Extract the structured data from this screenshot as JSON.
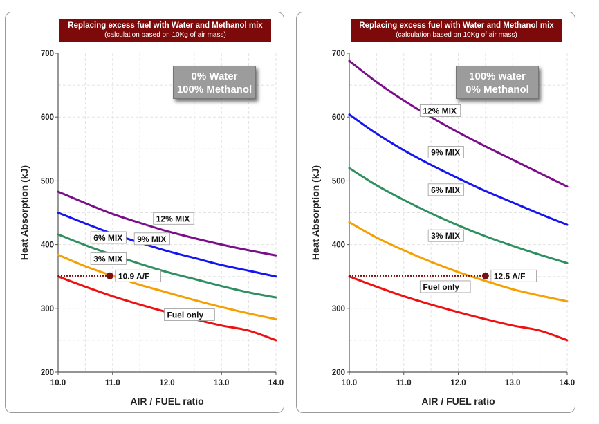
{
  "chart_data": [
    {
      "type": "line",
      "title": "Replacing excess fuel with Water and Methanol mix",
      "subtitle": "(calculation based on 10Kg of air mass)",
      "xlabel": "AIR / FUEL ratio",
      "ylabel": "Heat Absorption (kJ)",
      "xlim": [
        10.0,
        14.0
      ],
      "ylim": [
        200,
        700
      ],
      "xticks": [
        "10.0",
        "11.0",
        "12.0",
        "13.0",
        "14.0"
      ],
      "yticks": [
        "200",
        "300",
        "400",
        "500",
        "600",
        "700"
      ],
      "grid": true,
      "mix_line1": "0% Water",
      "mix_line2": "100% Methanol",
      "series": [
        {
          "name": "12% MIX",
          "color": "#7b0f8a",
          "x": [
            10.0,
            10.5,
            11.0,
            11.5,
            12.0,
            12.5,
            13.0,
            13.5,
            14.0
          ],
          "y": [
            483,
            465,
            448,
            434,
            421,
            410,
            400,
            391,
            383
          ]
        },
        {
          "name": "9% MIX",
          "color": "#1515ee",
          "x": [
            10.0,
            10.5,
            11.0,
            11.5,
            12.0,
            12.5,
            13.0,
            13.5,
            14.0
          ],
          "y": [
            450,
            433,
            417,
            403,
            390,
            379,
            368,
            359,
            350
          ]
        },
        {
          "name": "6% MIX",
          "color": "#2f8f60",
          "x": [
            10.0,
            10.5,
            11.0,
            11.5,
            12.0,
            12.5,
            13.0,
            13.5,
            14.0
          ],
          "y": [
            416,
            399,
            384,
            370,
            357,
            346,
            335,
            325,
            317
          ]
        },
        {
          "name": "3% MIX",
          "color": "#f5a000",
          "x": [
            10.0,
            10.5,
            11.0,
            11.5,
            12.0,
            12.5,
            13.0,
            13.5,
            14.0
          ],
          "y": [
            384,
            366,
            351,
            337,
            325,
            313,
            302,
            292,
            283
          ]
        },
        {
          "name": "Fuel only",
          "color": "#ee1111",
          "x": [
            10.0,
            10.5,
            11.0,
            11.5,
            12.0,
            12.5,
            13.0,
            13.5,
            14.0
          ],
          "y": [
            350,
            334,
            319,
            306,
            294,
            283,
            273,
            265,
            250
          ]
        }
      ],
      "marker": {
        "x": 10.95,
        "y": 351,
        "label": "10.9 A/F",
        "color": "#7a1010"
      },
      "labels": [
        {
          "text": "12% MIX",
          "x": 11.8,
          "y": 441
        },
        {
          "text": "9% MIX",
          "x": 11.45,
          "y": 409
        },
        {
          "text": "6% MIX",
          "x": 10.65,
          "y": 411
        },
        {
          "text": "3% MIX",
          "x": 10.65,
          "y": 378
        },
        {
          "text": "Fuel only",
          "x": 12.0,
          "y": 290
        }
      ]
    },
    {
      "type": "line",
      "title": "Replacing excess fuel with Water and Methanol mix",
      "subtitle": "(calculation based on 10Kg of air mass)",
      "xlabel": "AIR / FUEL ratio",
      "ylabel": "Heat Absorption (kJ)",
      "xlim": [
        10.0,
        14.0
      ],
      "ylim": [
        200,
        700
      ],
      "xticks": [
        "10.0",
        "11.0",
        "12.0",
        "13.0",
        "14.0"
      ],
      "yticks": [
        "200",
        "300",
        "400",
        "500",
        "600",
        "700"
      ],
      "grid": true,
      "mix_line1": "100% water",
      "mix_line2": "0% Methanol",
      "series": [
        {
          "name": "12% MIX",
          "color": "#7b0f8a",
          "x": [
            10.0,
            10.5,
            11.0,
            11.5,
            12.0,
            12.5,
            13.0,
            13.5,
            14.0
          ],
          "y": [
            688,
            655,
            626,
            600,
            576,
            554,
            533,
            512,
            491
          ]
        },
        {
          "name": "9% MIX",
          "color": "#1515ee",
          "x": [
            10.0,
            10.5,
            11.0,
            11.5,
            12.0,
            12.5,
            13.0,
            13.5,
            14.0
          ],
          "y": [
            604,
            574,
            548,
            525,
            504,
            484,
            466,
            448,
            431
          ]
        },
        {
          "name": "6% MIX",
          "color": "#2f8f60",
          "x": [
            10.0,
            10.5,
            11.0,
            11.5,
            12.0,
            12.5,
            13.0,
            13.5,
            14.0
          ],
          "y": [
            520,
            493,
            470,
            449,
            430,
            413,
            398,
            384,
            371
          ]
        },
        {
          "name": "3% MIX",
          "color": "#f5a000",
          "x": [
            10.0,
            10.5,
            11.0,
            11.5,
            12.0,
            12.5,
            13.0,
            13.5,
            14.0
          ],
          "y": [
            435,
            411,
            391,
            373,
            357,
            343,
            330,
            320,
            311
          ]
        },
        {
          "name": "Fuel only",
          "color": "#ee1111",
          "x": [
            10.0,
            10.5,
            11.0,
            11.5,
            12.0,
            12.5,
            13.0,
            13.5,
            14.0
          ],
          "y": [
            350,
            334,
            319,
            306,
            294,
            283,
            273,
            265,
            250
          ]
        }
      ],
      "marker": {
        "x": 12.5,
        "y": 351,
        "label": "12.5 A/F",
        "color": "#7a1010"
      },
      "labels": [
        {
          "text": "12% MIX",
          "x": 11.35,
          "y": 610
        },
        {
          "text": "9% MIX",
          "x": 11.5,
          "y": 545
        },
        {
          "text": "6% MIX",
          "x": 11.5,
          "y": 486
        },
        {
          "text": "3% MIX",
          "x": 11.5,
          "y": 414
        },
        {
          "text": "Fuel only",
          "x": 11.35,
          "y": 334
        }
      ]
    }
  ]
}
